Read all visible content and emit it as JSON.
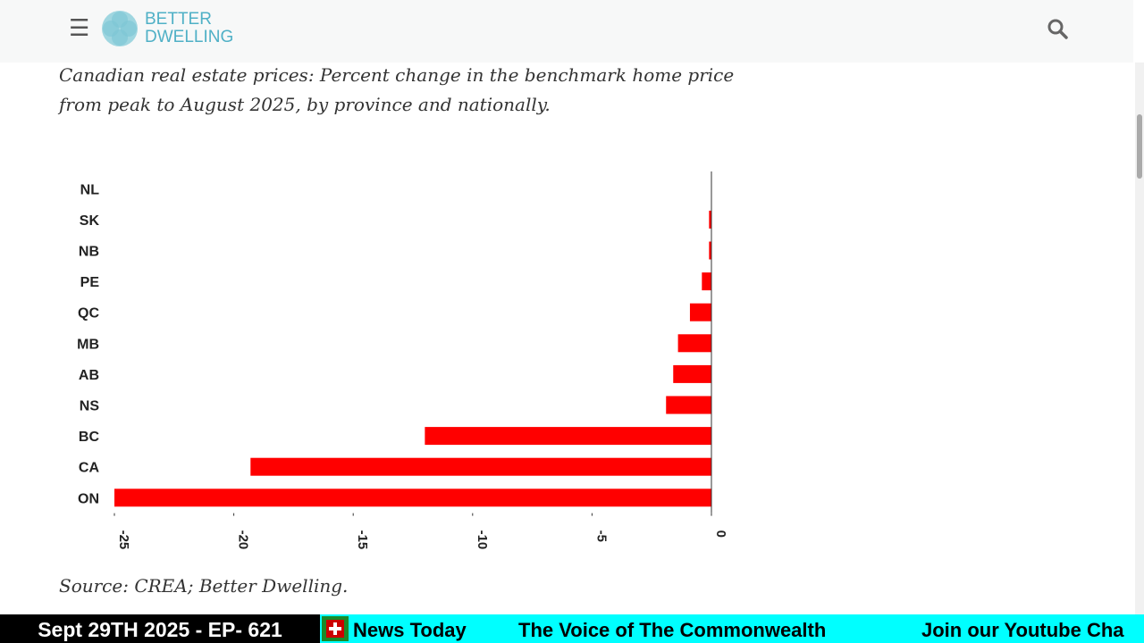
{
  "header": {
    "logo_line1": "BETTER",
    "logo_line2": "DWELLING"
  },
  "caption": "Canadian real estate prices: Percent change in the benchmark home price from peak to August 2025, by province and nationally.",
  "chart_data": {
    "type": "barh",
    "categories": [
      "NL",
      "SK",
      "NB",
      "PE",
      "QC",
      "MB",
      "AB",
      "NS",
      "BC",
      "CA",
      "ON"
    ],
    "values": [
      0,
      -0.1,
      -0.1,
      -0.4,
      -0.9,
      -1.4,
      -1.6,
      -1.9,
      -12.0,
      -19.3,
      -25.0
    ],
    "color": "#ff0000",
    "xlim": [
      -25,
      0
    ],
    "xticks": [
      -25,
      -20,
      -15,
      -10,
      -5,
      0
    ]
  },
  "source": "Source: CREA; Better Dwelling.",
  "ticker": {
    "episode": "Sept 29TH 2025 - EP- 621",
    "items": [
      "News Today",
      "The Voice of The Commonwealth",
      "Join our Youtube Cha"
    ]
  }
}
